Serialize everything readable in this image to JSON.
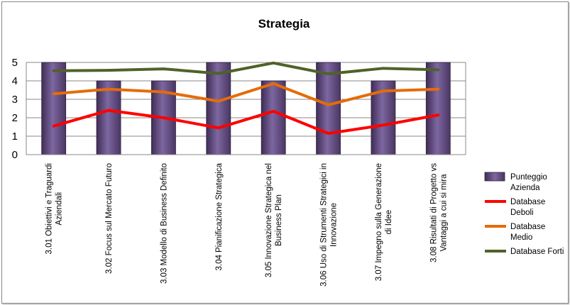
{
  "chart_data": {
    "type": "bar",
    "title": "Strategia",
    "categories": [
      [
        "3.01 Obiettivi e Traguardi",
        "Aziendali"
      ],
      [
        "3.02 Focus sul Mercato Futuro"
      ],
      [
        "3.03 Modello di Business Definito"
      ],
      [
        "3.04 Pianificazione Strategica"
      ],
      [
        "3.05 Innovazione Strategica nel",
        "Business Plan"
      ],
      [
        "3.06 Uso di Strumenti Strategici in",
        "Innovazione"
      ],
      [
        "3.07 Impegno sulla Generazione",
        "di Idee"
      ],
      [
        "3.08 Risultati di Progetto vs",
        "Vantaggi a cui si mira"
      ]
    ],
    "ylim": [
      0,
      5
    ],
    "yticks": [
      "0",
      "1",
      "2",
      "3",
      "4",
      "5"
    ],
    "grid": true,
    "legend_position": "right",
    "series": [
      {
        "name": [
          "Punteggio",
          "Azienda"
        ],
        "type": "bar",
        "color": "#604a7b",
        "values": [
          5,
          4,
          4,
          5,
          4,
          5,
          4,
          5
        ]
      },
      {
        "name": [
          "Database",
          "Deboli"
        ],
        "type": "line",
        "color": "#ff0000",
        "values": [
          1.55,
          2.4,
          2.0,
          1.45,
          2.35,
          1.15,
          1.6,
          2.15
        ]
      },
      {
        "name": [
          "Database",
          "Medio"
        ],
        "type": "line",
        "color": "#e46c0a",
        "values": [
          3.3,
          3.55,
          3.4,
          2.9,
          3.85,
          2.7,
          3.45,
          3.55
        ]
      },
      {
        "name": [
          "Database Forti"
        ],
        "type": "line",
        "color": "#4f6228",
        "values": [
          4.55,
          4.57,
          4.65,
          4.4,
          4.97,
          4.38,
          4.68,
          4.6
        ]
      }
    ]
  }
}
